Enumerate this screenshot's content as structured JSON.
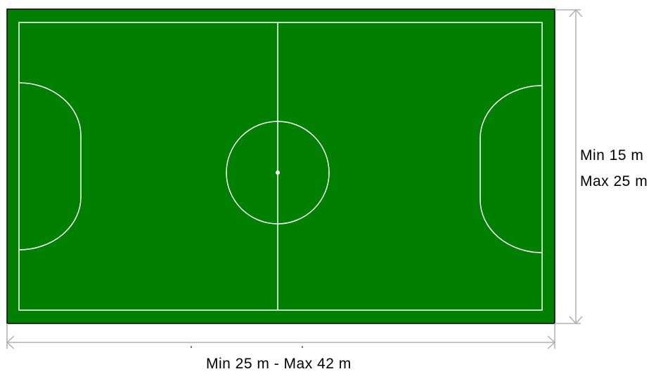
{
  "colors": {
    "pitch": "#007f00",
    "pitch_border": "#000000",
    "lines": "#ffffff",
    "dimension_arrows": "#b0b0b0",
    "text": "#000000"
  },
  "court": {
    "width_dimension": {
      "min_label": "Min 15 m",
      "max_label": "Max 25 m"
    },
    "length_dimension": {
      "label": "Min 25 m - Max 42 m"
    }
  }
}
